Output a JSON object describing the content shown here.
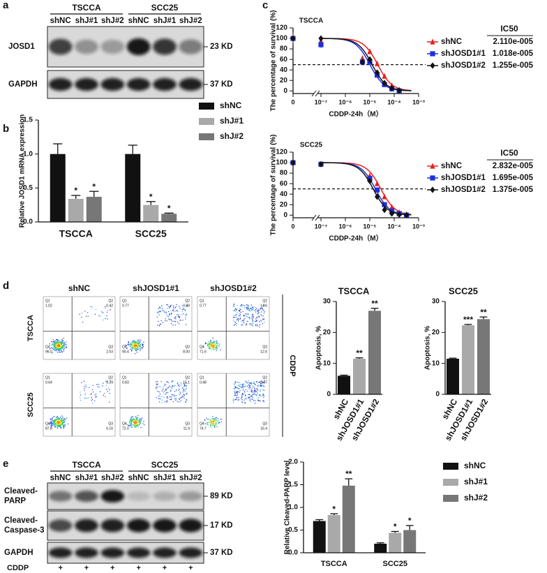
{
  "panel_labels": [
    "a",
    "b",
    "c",
    "d",
    "e"
  ],
  "blot_a": {
    "groups": [
      "TSCCA",
      "SCC25"
    ],
    "lanes": [
      "shNC",
      "shJ#1",
      "shJ#2",
      "shNC",
      "shJ#1",
      "shJ#2"
    ],
    "rows": [
      {
        "name": "JOSD1",
        "size": "23 KD"
      },
      {
        "name": "GAPDH",
        "size": "37 KD"
      }
    ]
  },
  "flow": {
    "columns": [
      "shNC",
      "shJOSD1#1",
      "shJOSD1#2"
    ],
    "rows": [
      "TSCCA",
      "SCC25"
    ],
    "treatment": "CDDP",
    "quadrant_names": [
      "Q1",
      "Q2",
      "Q3",
      "Q4"
    ],
    "plots": [
      [
        [
          "1.02",
          "0.42",
          "2.53",
          "96.0"
        ],
        [
          "0.77",
          "0.88",
          "8.00",
          "90.4"
        ],
        [
          "0.77",
          "14.6",
          "12.6",
          "71.6"
        ]
      ],
      [
        [
          "0.64",
          "5.39",
          "6.16",
          "87.8"
        ],
        [
          "0.83",
          "15.1",
          "11.9",
          "72.0"
        ],
        [
          "0.48",
          "8.47",
          "16.4",
          "74.7"
        ]
      ]
    ]
  },
  "blot_e": {
    "groups": [
      "TSCCA",
      "SCC25"
    ],
    "lanes": [
      "shNC",
      "shJ#1",
      "shJ#2",
      "shNC",
      "shJ#1",
      "shJ#2"
    ],
    "rows": [
      {
        "name": [
          "Cleaved-",
          "PARP"
        ],
        "size": "89 KD"
      },
      {
        "name": [
          "Cleaved-",
          "Caspase-3"
        ],
        "size": "17 KD"
      },
      {
        "name": [
          "GAPDH"
        ],
        "size": "37 KD"
      }
    ],
    "treatment": "CDDP",
    "treatment_marks": [
      "+",
      "+",
      "+",
      "+",
      "+",
      "+"
    ]
  },
  "chart_data": [
    {
      "type": "bar",
      "y_label": "Relative JOSD1 mRNA expression",
      "categories": [
        "TSCCA",
        "SCC25"
      ],
      "ylim": [
        0,
        1.5
      ],
      "yticks": [
        {
          "value": 0,
          "label": "0.0"
        },
        0.5,
        {
          "value": 1,
          "label": "1.0"
        },
        1.5
      ],
      "series": [
        {
          "name": "shNC",
          "color": "#111111",
          "values": [
            1.0,
            1.0
          ],
          "errors": [
            0.15,
            0.13
          ]
        },
        {
          "name": "shJ#1",
          "color": "#a9a9a9",
          "values": [
            0.34,
            0.25
          ],
          "errors": [
            0.05,
            0.05
          ],
          "annotations": [
            "*",
            "*"
          ]
        },
        {
          "name": "shJ#2",
          "color": "#777777",
          "values": [
            0.37,
            0.12
          ],
          "errors": [
            0.08,
            0.01
          ],
          "annotations": [
            "*",
            "*"
          ]
        }
      ]
    },
    {
      "type": "line",
      "title": "TSCCA",
      "y_label": "The percentage of survival (%)",
      "x_label": "CDDP-24h（M）",
      "xlog": true,
      "x_break_tick": 0,
      "xlim": [
        1e-07,
        0.001
      ],
      "xticks": [
        {
          "value": 1e-07,
          "label": "10⁻⁷"
        },
        {
          "value": 1e-06,
          "label": "10⁻⁶"
        },
        {
          "value": 1e-05,
          "label": "10⁻⁵"
        },
        {
          "value": 0.0001,
          "label": "10⁻⁴"
        },
        {
          "value": 0.001,
          "label": "10⁻³"
        }
      ],
      "ylim": [
        -5,
        120
      ],
      "yticks": [
        0,
        20,
        40,
        60,
        80,
        100,
        120
      ],
      "reference_line": 50,
      "ic50_title": "IC50",
      "x": [
        0,
        1e-07,
        5e-06,
        1e-05,
        2e-05,
        4e-05,
        8e-05,
        0.00016
      ],
      "series": [
        {
          "name": "shNC",
          "color": "#e8201f",
          "marker": "triangle",
          "values": [
            100,
            95,
            62,
            75,
            52,
            28,
            10,
            1
          ],
          "errors": [
            10,
            8,
            3,
            3,
            3,
            2,
            2,
            1
          ],
          "ic50": 2.11e-05,
          "ic50_label": "2.110e-005"
        },
        {
          "name": "shJOSD1#1",
          "color": "#1f2fe0",
          "marker": "square",
          "values": [
            100,
            88,
            55,
            55,
            30,
            12,
            4,
            0
          ],
          "errors": [
            6,
            6,
            3,
            3,
            2,
            2,
            1,
            1
          ],
          "ic50": 1.018e-05,
          "ic50_label": "1.018e-005"
        },
        {
          "name": "shJOSD1#2",
          "color": "#111111",
          "marker": "diamond",
          "values": [
            100,
            100,
            55,
            60,
            35,
            15,
            5,
            1
          ],
          "errors": [
            4,
            5,
            5,
            3,
            2,
            2,
            1,
            1
          ],
          "ic50": 1.255e-05,
          "ic50_label": "1.255e-005"
        }
      ]
    },
    {
      "type": "line",
      "title": "SCC25",
      "y_label": "The percentage of survival (%)",
      "x_label": "CDDP-24h（M）",
      "xlog": true,
      "x_break_tick": 0,
      "xlim": [
        1e-07,
        0.001
      ],
      "xticks": [
        {
          "value": 1e-07,
          "label": "10⁻⁷"
        },
        {
          "value": 1e-06,
          "label": "10⁻⁶"
        },
        {
          "value": 1e-05,
          "label": "10⁻⁵"
        },
        {
          "value": 0.0001,
          "label": "10⁻⁴"
        },
        {
          "value": 0.001,
          "label": "10⁻³"
        }
      ],
      "ylim": [
        -5,
        120
      ],
      "yticks": [
        0,
        20,
        40,
        60,
        80,
        100,
        120
      ],
      "reference_line": 50,
      "ic50_title": "IC50",
      "x": [
        0,
        1e-07,
        1e-05,
        2e-05,
        4e-05,
        8e-05,
        0.00016,
        0.00032
      ],
      "series": [
        {
          "name": "shNC",
          "color": "#e8201f",
          "marker": "triangle",
          "values": [
            100,
            97,
            75,
            60,
            35,
            15,
            5,
            1
          ],
          "errors": [
            1,
            2,
            2,
            2,
            2,
            1,
            1,
            1
          ],
          "ic50": 2.832e-05,
          "ic50_label": "2.832e-005"
        },
        {
          "name": "shJOSD1#1",
          "color": "#1f2fe0",
          "marker": "square",
          "values": [
            100,
            97,
            70,
            48,
            20,
            8,
            3,
            0
          ],
          "errors": [
            1,
            2,
            2,
            2,
            2,
            1,
            1,
            1
          ],
          "ic50": 1.695e-05,
          "ic50_label": "1.695e-005"
        },
        {
          "name": "shJOSD1#2",
          "color": "#111111",
          "marker": "diamond",
          "values": [
            100,
            97,
            65,
            35,
            10,
            3,
            1,
            0
          ],
          "errors": [
            1,
            2,
            2,
            2,
            2,
            1,
            1,
            1
          ],
          "ic50": 1.375e-05,
          "ic50_label": "1.375e-005"
        }
      ]
    },
    {
      "type": "bar",
      "title": "TSCCA",
      "y_label": "Apoptosis, %",
      "categories": [
        "shNC",
        "shJOSD1#1",
        "shJOSD1#2"
      ],
      "values": [
        6,
        11.5,
        27
      ],
      "errors": [
        0.2,
        0.3,
        0.8
      ],
      "annotations": [
        null,
        "**",
        "**"
      ],
      "colors": [
        "#111111",
        "#a9a9a9",
        "#777777"
      ],
      "ylim": [
        0,
        30
      ],
      "yticks": [
        0,
        10,
        20,
        30
      ]
    },
    {
      "type": "bar",
      "title": "SCC25",
      "y_label": "Apoptosis, %",
      "categories": [
        "shNC",
        "shJOSD1#1",
        "shJOSD1#2"
      ],
      "values": [
        11.5,
        22.3,
        24.3
      ],
      "errors": [
        0.2,
        0.3,
        0.7
      ],
      "annotations": [
        null,
        "***",
        "**"
      ],
      "colors": [
        "#111111",
        "#a9a9a9",
        "#777777"
      ],
      "ylim": [
        0,
        30
      ],
      "yticks": [
        0,
        10,
        20,
        30
      ]
    },
    {
      "type": "bar",
      "y_label": "Relative Cleaved-PARP level",
      "categories": [
        "TSCCA",
        "SCC25"
      ],
      "ylim": [
        0,
        2
      ],
      "yticks": [
        {
          "value": 0,
          "label": "0.0"
        },
        0.5,
        {
          "value": 1,
          "label": "1.0"
        },
        1.5,
        {
          "value": 2,
          "label": "2.0"
        }
      ],
      "series": [
        {
          "name": "shNC",
          "color": "#111111",
          "values": [
            0.7,
            0.2
          ],
          "errors": [
            0.03,
            0.02
          ]
        },
        {
          "name": "shJ#1",
          "color": "#a9a9a9",
          "values": [
            0.83,
            0.44
          ],
          "errors": [
            0.03,
            0.03
          ],
          "annotations": [
            "*",
            "*"
          ]
        },
        {
          "name": "shJ#2",
          "color": "#777777",
          "values": [
            1.48,
            0.5
          ],
          "errors": [
            0.15,
            0.1
          ],
          "annotations": [
            "**",
            "*"
          ]
        }
      ]
    }
  ]
}
